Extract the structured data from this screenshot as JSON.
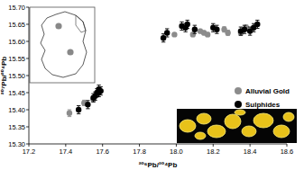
{
  "chart_data": {
    "type": "scatter",
    "x_label": "²⁰⁶Pb/²⁰⁴Pb",
    "y_label": "²⁰⁷Pb/²⁰⁴Pb",
    "xlim": [
      17.2,
      18.6
    ],
    "ylim": [
      15.3,
      15.7
    ],
    "xticks": [
      17.2,
      17.4,
      17.6,
      17.8,
      {
        "value": 18.0,
        "label": "18.0"
      },
      18.2,
      18.4,
      18.6
    ],
    "yticks": [
      {
        "value": 15.3,
        "label": "15.30"
      },
      15.35,
      {
        "value": 15.4,
        "label": "15.40"
      },
      15.45,
      {
        "value": 15.5,
        "label": "15.50"
      },
      15.55,
      {
        "value": 15.6,
        "label": "15.60"
      },
      15.65,
      {
        "value": 15.7,
        "label": "15.70"
      }
    ],
    "grid": false,
    "legend": "right",
    "series": [
      {
        "name": "Alluvial Gold",
        "color": "#8c8c8c",
        "marker": "circle",
        "x": [
          17.42,
          17.5,
          17.55,
          17.57,
          17.99,
          18.09,
          18.13,
          18.15,
          18.17,
          18.26,
          18.28,
          18.35,
          18.38
        ],
        "values": [
          15.39,
          15.42,
          15.43,
          15.445,
          15.62,
          15.62,
          15.63,
          15.625,
          15.62,
          15.635,
          15.625,
          15.625,
          15.64
        ],
        "y_errors": [
          0.01,
          0.008,
          0.008,
          0.008,
          0.005,
          0.006,
          0.006,
          0.006,
          0.006,
          0.008,
          0.008,
          0.008,
          0.008
        ]
      },
      {
        "name": "Sulphides",
        "color": "#000000",
        "marker": "circle",
        "x": [
          17.47,
          17.52,
          17.55,
          17.56,
          17.57,
          17.58,
          17.58,
          17.59,
          17.93,
          17.95,
          18.03,
          18.05,
          18.06,
          18.1,
          18.2,
          18.22,
          18.35,
          18.37,
          18.4,
          18.42,
          18.44
        ],
        "values": [
          15.4,
          15.415,
          15.435,
          15.44,
          15.45,
          15.46,
          15.45,
          15.455,
          15.61,
          15.625,
          15.645,
          15.64,
          15.65,
          15.635,
          15.64,
          15.635,
          15.63,
          15.635,
          15.63,
          15.64,
          15.65
        ],
        "y_errors": [
          0.012,
          0.012,
          0.012,
          0.012,
          0.012,
          0.012,
          0.012,
          0.012,
          0.012,
          0.012,
          0.012,
          0.012,
          0.012,
          0.012,
          0.012,
          0.012,
          0.012,
          0.012,
          0.012,
          0.012,
          0.012
        ]
      }
    ]
  }
}
